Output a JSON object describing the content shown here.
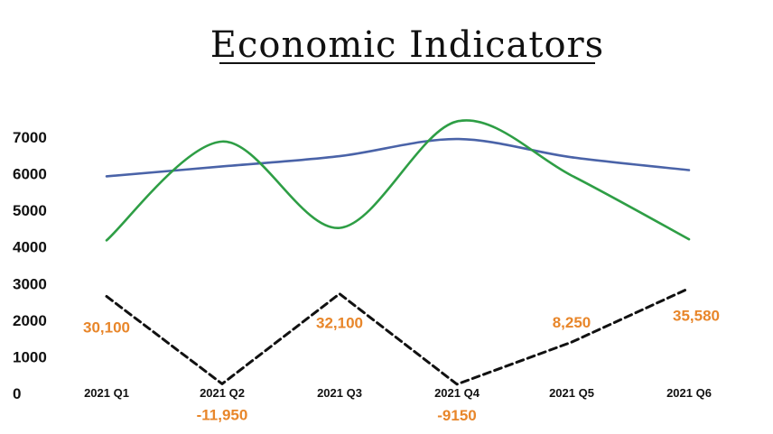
{
  "chart_data": {
    "type": "line",
    "title": "Economic Indicators",
    "xlabel": "",
    "ylabel": "",
    "categories": [
      "2021   Q1",
      "2021   Q2",
      "2021   Q3",
      "2021   Q4",
      "2021   Q5",
      "2021   Q6"
    ],
    "ylim": [
      0,
      7000
    ],
    "yticks": [
      0,
      1000,
      2000,
      3000,
      4000,
      5000,
      6000,
      7000
    ],
    "grid": false,
    "legend": "none",
    "series": [
      {
        "color": "#4a63a8",
        "style": "solid-smooth",
        "values": [
          5930,
          6200,
          6480,
          6950,
          6450,
          6100
        ]
      },
      {
        "color": "#2e9e45",
        "style": "solid-smooth",
        "values": [
          4180,
          6880,
          4520,
          7430,
          5950,
          4210
        ]
      },
      {
        "color": "#111111",
        "style": "dashed",
        "values": [
          2650,
          260,
          2720,
          250,
          1400,
          2870
        ],
        "data_labels": [
          "30,100",
          "-11,950",
          "32,100",
          "-9150",
          "8,250",
          "35,580"
        ]
      }
    ],
    "label_color": "#e8862a"
  }
}
